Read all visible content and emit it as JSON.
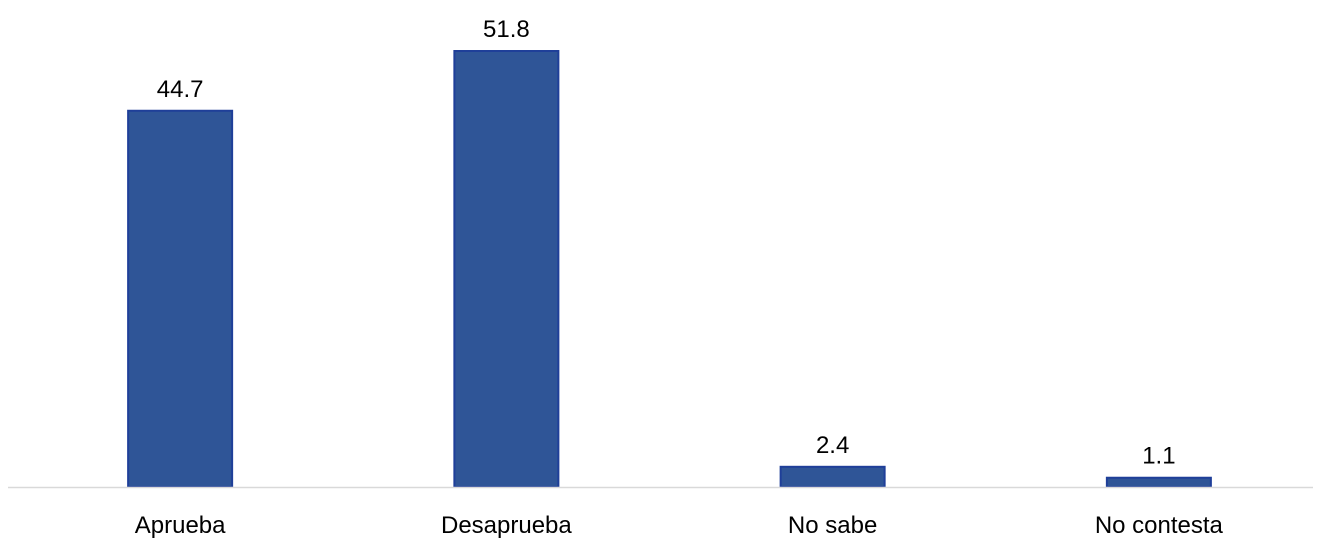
{
  "chart_data": {
    "type": "bar",
    "categories": [
      "Aprueba",
      "Desaprueba",
      "No sabe",
      "No contesta"
    ],
    "values": [
      44.7,
      51.8,
      2.4,
      1.1
    ],
    "value_labels": [
      "44.7",
      "51.8",
      "2.4",
      "1.1"
    ],
    "title": "",
    "xlabel": "",
    "ylabel": "",
    "ylim": [
      0,
      51.8
    ],
    "grid": false,
    "legend": "none"
  },
  "colors": {
    "bar_fill": "#2f5597",
    "bar_stroke": "#1f3f99",
    "axis": "#d9d9d9"
  }
}
